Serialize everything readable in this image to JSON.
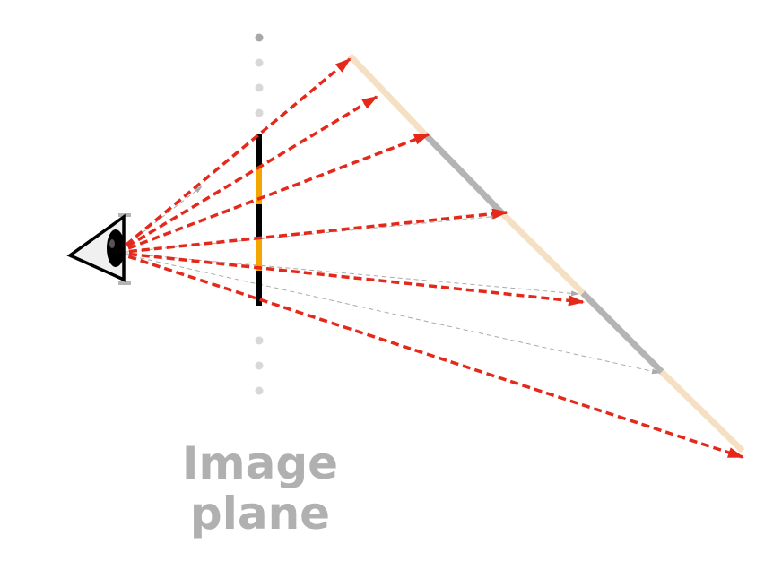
{
  "label": {
    "line1": "Image",
    "line2": "plane"
  },
  "colors": {
    "ray": "#e4291b",
    "ray_faint": "#aaaaaa",
    "sample_hit": "#f5a500",
    "sample_miss": "#000000",
    "surface_light": "#f6e0c4",
    "surface_dark": "#b4b4b4",
    "plane_dots": "#d8d8d8",
    "eye_outline": "#000000"
  },
  "icons": [
    "eye-icon"
  ]
}
